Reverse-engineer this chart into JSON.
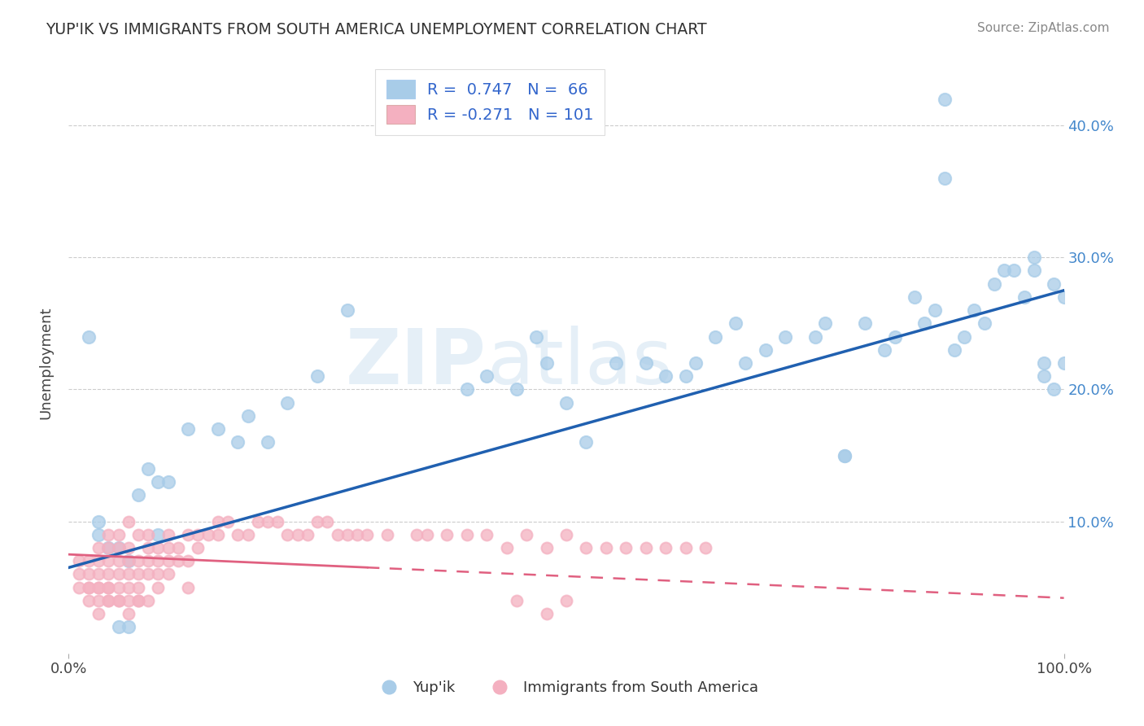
{
  "title": "YUP'IK VS IMMIGRANTS FROM SOUTH AMERICA UNEMPLOYMENT CORRELATION CHART",
  "source": "Source: ZipAtlas.com",
  "ylabel": "Unemployment",
  "y_ticks": [
    0.0,
    0.1,
    0.2,
    0.3,
    0.4
  ],
  "y_tick_labels_right": [
    "",
    "10.0%",
    "20.0%",
    "30.0%",
    "40.0%"
  ],
  "legend1_r": "0.747",
  "legend1_n": "66",
  "legend2_r": "-0.271",
  "legend2_n": "101",
  "blue_color": "#a8cce8",
  "pink_color": "#f4b0c0",
  "blue_line_color": "#2060b0",
  "pink_line_color": "#e06080",
  "background_color": "#ffffff",
  "grid_color": "#cccccc",
  "blue_scatter_x": [
    0.02,
    0.03,
    0.03,
    0.04,
    0.05,
    0.06,
    0.07,
    0.08,
    0.09,
    0.09,
    0.1,
    0.12,
    0.15,
    0.17,
    0.18,
    0.2,
    0.22,
    0.25,
    0.28,
    0.4,
    0.42,
    0.45,
    0.47,
    0.48,
    0.5,
    0.52,
    0.55,
    0.58,
    0.6,
    0.62,
    0.63,
    0.65,
    0.67,
    0.68,
    0.7,
    0.72,
    0.75,
    0.76,
    0.78,
    0.8,
    0.82,
    0.83,
    0.85,
    0.86,
    0.87,
    0.88,
    0.89,
    0.9,
    0.91,
    0.92,
    0.93,
    0.94,
    0.95,
    0.96,
    0.97,
    0.97,
    0.98,
    0.98,
    0.99,
    0.99,
    1.0,
    1.0,
    0.05,
    0.06,
    0.78,
    0.88
  ],
  "blue_scatter_y": [
    0.24,
    0.1,
    0.09,
    0.08,
    0.08,
    0.07,
    0.12,
    0.14,
    0.13,
    0.09,
    0.13,
    0.17,
    0.17,
    0.16,
    0.18,
    0.16,
    0.19,
    0.21,
    0.26,
    0.2,
    0.21,
    0.2,
    0.24,
    0.22,
    0.19,
    0.16,
    0.22,
    0.22,
    0.21,
    0.21,
    0.22,
    0.24,
    0.25,
    0.22,
    0.23,
    0.24,
    0.24,
    0.25,
    0.15,
    0.25,
    0.23,
    0.24,
    0.27,
    0.25,
    0.26,
    0.36,
    0.23,
    0.24,
    0.26,
    0.25,
    0.28,
    0.29,
    0.29,
    0.27,
    0.3,
    0.29,
    0.22,
    0.21,
    0.28,
    0.2,
    0.22,
    0.27,
    0.02,
    0.02,
    0.15,
    0.42
  ],
  "pink_scatter_x": [
    0.01,
    0.01,
    0.01,
    0.02,
    0.02,
    0.02,
    0.02,
    0.02,
    0.03,
    0.03,
    0.03,
    0.03,
    0.03,
    0.03,
    0.04,
    0.04,
    0.04,
    0.04,
    0.04,
    0.04,
    0.04,
    0.05,
    0.05,
    0.05,
    0.05,
    0.05,
    0.05,
    0.06,
    0.06,
    0.06,
    0.06,
    0.06,
    0.06,
    0.07,
    0.07,
    0.07,
    0.07,
    0.07,
    0.08,
    0.08,
    0.08,
    0.08,
    0.08,
    0.09,
    0.09,
    0.09,
    0.09,
    0.1,
    0.1,
    0.1,
    0.1,
    0.11,
    0.11,
    0.12,
    0.12,
    0.12,
    0.13,
    0.13,
    0.14,
    0.15,
    0.15,
    0.16,
    0.17,
    0.18,
    0.19,
    0.2,
    0.21,
    0.22,
    0.23,
    0.24,
    0.25,
    0.26,
    0.27,
    0.28,
    0.29,
    0.3,
    0.32,
    0.35,
    0.36,
    0.38,
    0.4,
    0.42,
    0.44,
    0.46,
    0.48,
    0.5,
    0.52,
    0.54,
    0.56,
    0.58,
    0.6,
    0.62,
    0.64,
    0.03,
    0.04,
    0.05,
    0.06,
    0.07,
    0.45,
    0.5,
    0.48
  ],
  "pink_scatter_y": [
    0.06,
    0.05,
    0.07,
    0.05,
    0.06,
    0.07,
    0.04,
    0.05,
    0.05,
    0.06,
    0.07,
    0.08,
    0.04,
    0.05,
    0.05,
    0.06,
    0.07,
    0.05,
    0.08,
    0.09,
    0.04,
    0.05,
    0.06,
    0.07,
    0.08,
    0.04,
    0.09,
    0.05,
    0.06,
    0.08,
    0.04,
    0.07,
    0.1,
    0.05,
    0.06,
    0.07,
    0.09,
    0.04,
    0.06,
    0.07,
    0.08,
    0.09,
    0.04,
    0.06,
    0.07,
    0.08,
    0.05,
    0.06,
    0.07,
    0.08,
    0.09,
    0.07,
    0.08,
    0.07,
    0.09,
    0.05,
    0.08,
    0.09,
    0.09,
    0.09,
    0.1,
    0.1,
    0.09,
    0.09,
    0.1,
    0.1,
    0.1,
    0.09,
    0.09,
    0.09,
    0.1,
    0.1,
    0.09,
    0.09,
    0.09,
    0.09,
    0.09,
    0.09,
    0.09,
    0.09,
    0.09,
    0.09,
    0.08,
    0.09,
    0.08,
    0.09,
    0.08,
    0.08,
    0.08,
    0.08,
    0.08,
    0.08,
    0.08,
    0.03,
    0.04,
    0.04,
    0.03,
    0.04,
    0.04,
    0.04,
    0.03
  ],
  "blue_line_x": [
    0.0,
    1.0
  ],
  "blue_line_y": [
    0.065,
    0.275
  ],
  "pink_line_x": [
    0.0,
    1.0
  ],
  "pink_line_y": [
    0.075,
    0.042
  ],
  "xlim": [
    0.0,
    1.0
  ],
  "ylim": [
    0.0,
    0.44
  ]
}
